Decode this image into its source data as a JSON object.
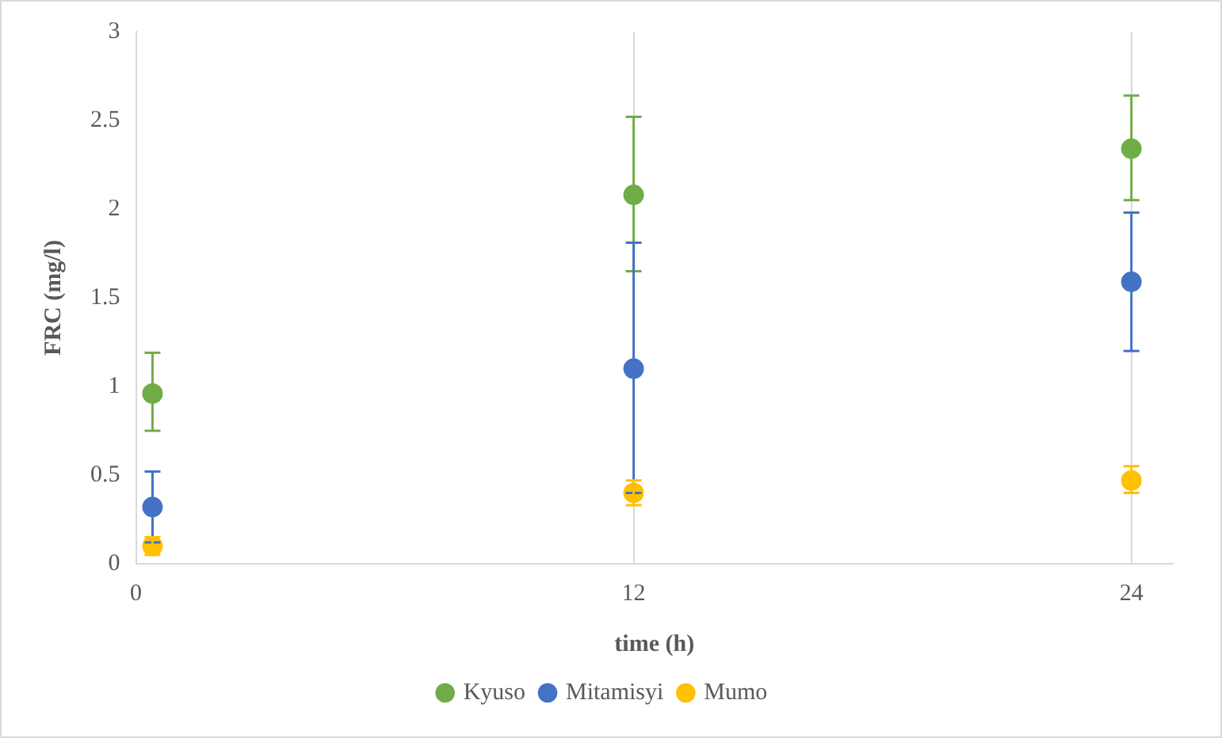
{
  "chart_data": {
    "type": "scatter",
    "xlabel": "time (h)",
    "ylabel": "FRC (mg/l)",
    "x": [
      0.4,
      12,
      24
    ],
    "series": [
      {
        "name": "Kyuso",
        "color": "#70ad47",
        "values": [
          0.96,
          2.08,
          2.34
        ],
        "errors": [
          [
            0.75,
            1.19
          ],
          [
            1.65,
            2.52
          ],
          [
            2.05,
            2.64
          ]
        ]
      },
      {
        "name": "Mitamisyi",
        "color": "#4472c4",
        "values": [
          0.32,
          1.1,
          1.59
        ],
        "errors": [
          [
            0.12,
            0.52
          ],
          [
            0.4,
            1.81
          ],
          [
            1.2,
            1.98
          ]
        ]
      },
      {
        "name": "Mumo",
        "color": "#ffc000",
        "values": [
          0.1,
          0.4,
          0.47
        ],
        "errors": [
          [
            0.05,
            0.15
          ],
          [
            0.33,
            0.47
          ],
          [
            0.4,
            0.55
          ]
        ]
      }
    ],
    "xlim": [
      0,
      25
    ],
    "xticks": [
      0,
      12,
      24
    ],
    "ylim": [
      0,
      3
    ],
    "yticks": [
      0,
      0.5,
      1,
      1.5,
      2,
      2.5,
      3
    ],
    "grid": "x",
    "legend": "bottom",
    "marker": "circle"
  }
}
